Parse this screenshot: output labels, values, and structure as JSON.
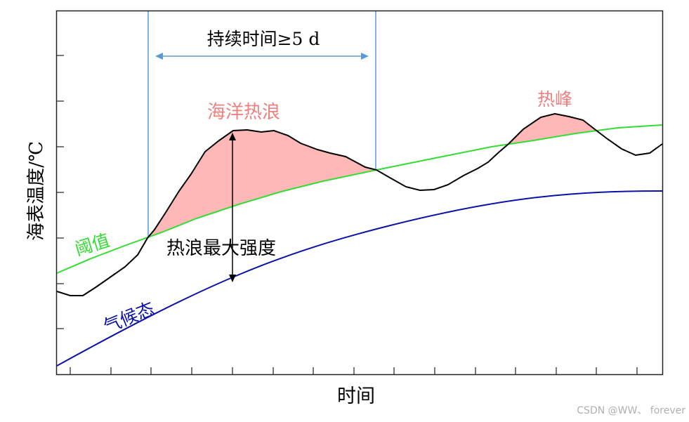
{
  "diagram": {
    "ylabel": "海表温度/℃",
    "xlabel": "时间",
    "duration_label": "持续时间≥5 d",
    "event_label": "海洋热浪",
    "peak_label": "热峰",
    "threshold_label": "阈值",
    "climatology_label": "气候态",
    "intensity_label": "热浪最大强度",
    "watermark": "CSDN @WW、 forever",
    "colors": {
      "sst": "#000000",
      "threshold": "#33dd33",
      "climatology": "#0b12a8",
      "event_fill": "#ffb8b8",
      "event_text": "#ee8080",
      "duration_lines": "#5b9bd5",
      "watermark": "#b0b0b0"
    }
  }
}
